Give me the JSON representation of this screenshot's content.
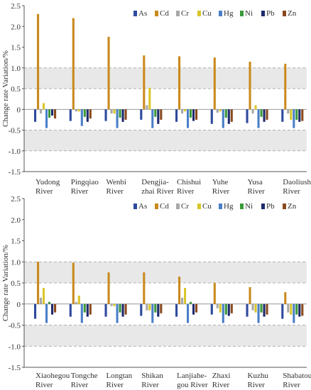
{
  "chart_data": [
    {
      "type": "bar",
      "ylabel": "Change rate Variation/%",
      "ylim": [
        -1.5,
        2.5
      ],
      "yticks": [
        "2.5",
        "2.0",
        "1.5",
        "1.0",
        "0.5",
        "0",
        "-0.5",
        "-1.0",
        "-1.5"
      ],
      "bands": [
        {
          "from": 0.5,
          "to": 1.0,
          "color": "#e8e8e8"
        },
        {
          "from": -1.0,
          "to": -0.5,
          "color": "#e8e8e8"
        }
      ],
      "dashed_lines": [
        1.0,
        0.5,
        -0.5,
        -1.0
      ],
      "legend_position": "top-right",
      "categories": [
        [
          "Yudong",
          "River"
        ],
        [
          "Pingqiao",
          "River"
        ],
        [
          "Wenbi",
          "River"
        ],
        [
          "Dengjia-",
          "zhai River"
        ],
        [
          "Chishui",
          "River"
        ],
        [
          "Yuhe",
          "River"
        ],
        [
          "Yusa",
          "River"
        ],
        [
          "Daoliushui",
          "River"
        ]
      ],
      "series": [
        {
          "name": "As",
          "color": "#2e4a9e",
          "values": [
            -0.3,
            -0.28,
            -0.28,
            -0.25,
            -0.3,
            -0.35,
            -0.33,
            -0.3
          ]
        },
        {
          "name": "Cd",
          "color": "#c98a1e",
          "values": [
            2.3,
            2.2,
            1.75,
            1.3,
            1.28,
            1.25,
            1.15,
            1.1
          ]
        },
        {
          "name": "Cr",
          "color": "#a8a8a8",
          "values": [
            -0.1,
            -0.05,
            -0.1,
            0.1,
            -0.1,
            -0.08,
            -0.1,
            -0.1
          ]
        },
        {
          "name": "Cu",
          "color": "#d8c62a",
          "values": [
            0.15,
            -0.05,
            -0.1,
            0.52,
            -0.05,
            -0.05,
            0.1,
            -0.25
          ]
        },
        {
          "name": "Hg",
          "color": "#4a7fc8",
          "values": [
            -0.45,
            -0.4,
            -0.45,
            -0.45,
            -0.45,
            -0.45,
            -0.45,
            -0.45
          ]
        },
        {
          "name": "Ni",
          "color": "#3a9a3a",
          "values": [
            -0.2,
            -0.18,
            -0.2,
            -0.18,
            -0.2,
            -0.2,
            -0.18,
            -0.25
          ]
        },
        {
          "name": "Pb",
          "color": "#1e2a6e",
          "values": [
            -0.15,
            -0.3,
            -0.3,
            -0.35,
            -0.28,
            -0.35,
            -0.3,
            -0.3
          ]
        },
        {
          "name": "Zn",
          "color": "#8a4a1e",
          "values": [
            -0.22,
            -0.22,
            -0.25,
            -0.25,
            -0.25,
            -0.3,
            -0.25,
            -0.28
          ]
        }
      ]
    },
    {
      "type": "bar",
      "ylabel": "Change rate Variation/%",
      "ylim": [
        -1.5,
        2.5
      ],
      "yticks": [
        "2.5",
        "2.0",
        "1.5",
        "1.0",
        "0.5",
        "0",
        "-0.5",
        "-1.0",
        "-1.5"
      ],
      "bands": [
        {
          "from": 0.5,
          "to": 1.0,
          "color": "#e8e8e8"
        },
        {
          "from": -1.0,
          "to": -0.5,
          "color": "#e8e8e8"
        }
      ],
      "dashed_lines": [
        1.0,
        0.5,
        -0.5,
        -1.0
      ],
      "legend_position": "top-right",
      "categories": [
        [
          "Xiaohegou",
          "River"
        ],
        [
          "Tongche",
          "River"
        ],
        [
          "Longtan",
          "River"
        ],
        [
          "Shikan",
          "River"
        ],
        [
          "Lanjiahe-",
          "gou River"
        ],
        [
          "Zhaxi",
          "River"
        ],
        [
          "Kuzhu",
          "River"
        ],
        [
          "Shabatou",
          "River"
        ]
      ],
      "series": [
        {
          "name": "As",
          "color": "#2e4a9e",
          "values": [
            -0.35,
            -0.3,
            -0.3,
            -0.28,
            -0.3,
            -0.25,
            -0.3,
            -0.35
          ]
        },
        {
          "name": "Cd",
          "color": "#c98a1e",
          "values": [
            1.0,
            0.98,
            0.75,
            0.75,
            0.65,
            0.5,
            0.4,
            0.28
          ]
        },
        {
          "name": "Cr",
          "color": "#a8a8a8",
          "values": [
            0.15,
            0.05,
            -0.05,
            -0.15,
            0.15,
            -0.1,
            -0.15,
            -0.2
          ]
        },
        {
          "name": "Cu",
          "color": "#d8c62a",
          "values": [
            0.38,
            0.2,
            -0.05,
            -0.15,
            0.38,
            -0.2,
            -0.2,
            -0.25
          ]
        },
        {
          "name": "Hg",
          "color": "#4a7fc8",
          "values": [
            -0.45,
            -0.45,
            -0.45,
            -0.45,
            -0.45,
            -0.45,
            -0.45,
            -0.45
          ]
        },
        {
          "name": "Ni",
          "color": "#3a9a3a",
          "values": [
            0.05,
            -0.2,
            -0.2,
            -0.2,
            0.05,
            -0.25,
            -0.2,
            -0.25
          ]
        },
        {
          "name": "Pb",
          "color": "#1e2a6e",
          "values": [
            -0.25,
            -0.3,
            -0.3,
            -0.3,
            -0.25,
            -0.28,
            -0.3,
            -0.3
          ]
        },
        {
          "name": "Zn",
          "color": "#8a4a1e",
          "values": [
            -0.2,
            -0.25,
            -0.25,
            -0.22,
            -0.2,
            -0.22,
            -0.25,
            -0.28
          ]
        }
      ]
    }
  ]
}
